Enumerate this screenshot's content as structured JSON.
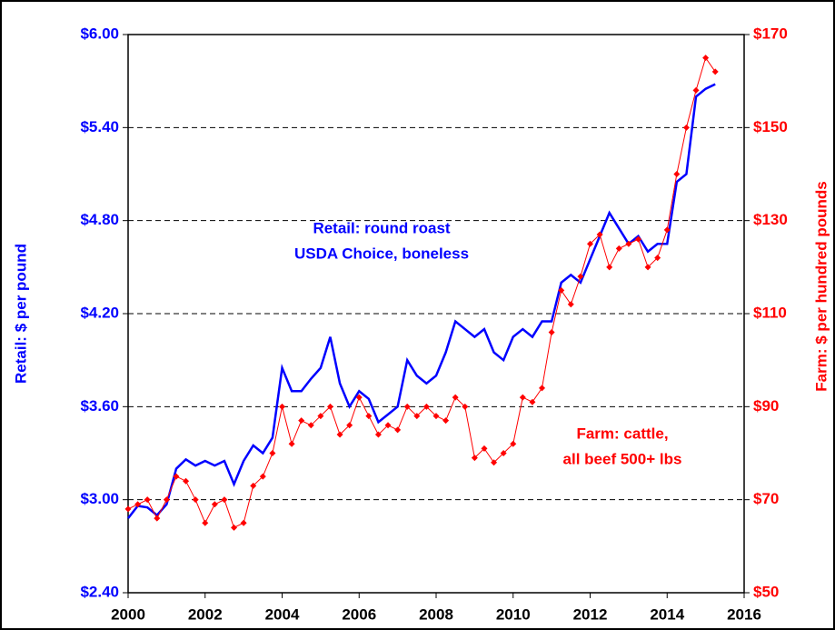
{
  "chart_data": {
    "type": "line",
    "y_label": "Retail: $ per pound",
    "y2_label": "Farm: $ per hundred pounds",
    "annotations": [
      {
        "lines": [
          "Retail: round roast",
          "USDA Choice, boneless"
        ],
        "color": "#0000ff"
      },
      {
        "lines": [
          "Farm: cattle,",
          "all beef 500+ lbs"
        ],
        "color": "#ff0000"
      }
    ],
    "x": [
      2000,
      2000.25,
      2000.5,
      2000.75,
      2001,
      2001.25,
      2001.5,
      2001.75,
      2002,
      2002.25,
      2002.5,
      2002.75,
      2003,
      2003.25,
      2003.5,
      2003.75,
      2004,
      2004.25,
      2004.5,
      2004.75,
      2005,
      2005.25,
      2005.5,
      2005.75,
      2006,
      2006.25,
      2006.5,
      2006.75,
      2007,
      2007.25,
      2007.5,
      2007.75,
      2008,
      2008.25,
      2008.5,
      2008.75,
      2009,
      2009.25,
      2009.5,
      2009.75,
      2010,
      2010.25,
      2010.5,
      2010.75,
      2011,
      2011.25,
      2011.5,
      2011.75,
      2012,
      2012.25,
      2012.5,
      2012.75,
      2013,
      2013.25,
      2013.5,
      2013.75,
      2014,
      2014.25,
      2014.5,
      2014.75,
      2015,
      2015.25
    ],
    "series": [
      {
        "name": "Retail",
        "color": "#0000ff",
        "axis": "y",
        "values": [
          2.88,
          2.96,
          2.95,
          2.9,
          2.97,
          3.2,
          3.26,
          3.22,
          3.25,
          3.22,
          3.25,
          3.1,
          3.25,
          3.35,
          3.3,
          3.4,
          3.85,
          3.7,
          3.7,
          3.78,
          3.85,
          4.05,
          3.75,
          3.6,
          3.7,
          3.65,
          3.5,
          3.55,
          3.6,
          3.9,
          3.8,
          3.75,
          3.8,
          3.95,
          4.15,
          4.1,
          4.05,
          4.1,
          3.95,
          3.9,
          4.05,
          4.1,
          4.05,
          4.15,
          4.15,
          4.4,
          4.45,
          4.4,
          4.55,
          4.7,
          4.85,
          4.75,
          4.65,
          4.7,
          4.6,
          4.65,
          4.65,
          5.05,
          5.1,
          5.6,
          5.65,
          5.68
        ]
      },
      {
        "name": "Farm",
        "color": "#ff0000",
        "axis": "y2",
        "markers": true,
        "values": [
          68,
          69,
          70,
          66,
          70,
          75,
          74,
          70,
          65,
          69,
          70,
          64,
          65,
          73,
          75,
          80,
          90,
          82,
          87,
          86,
          88,
          90,
          84,
          86,
          92,
          88,
          84,
          86,
          85,
          90,
          88,
          90,
          88,
          87,
          92,
          90,
          79,
          81,
          78,
          80,
          82,
          92,
          91,
          94,
          106,
          115,
          112,
          118,
          125,
          127,
          120,
          124,
          125,
          126,
          120,
          122,
          128,
          140,
          150,
          158,
          165,
          162
        ]
      }
    ],
    "xlim": [
      2000,
      2016
    ],
    "xticks": [
      2000,
      2002,
      2004,
      2006,
      2008,
      2010,
      2012,
      2014,
      2016
    ],
    "ylim": [
      2.4,
      6.0
    ],
    "yticks": [
      {
        "value": 2.4,
        "label": "$2.40"
      },
      {
        "value": 3.0,
        "label": "$3.00"
      },
      {
        "value": 3.6,
        "label": "$3.60"
      },
      {
        "value": 4.2,
        "label": "$4.20"
      },
      {
        "value": 4.8,
        "label": "$4.80"
      },
      {
        "value": 5.4,
        "label": "$5.40"
      },
      {
        "value": 6.0,
        "label": "$6.00"
      }
    ],
    "y2lim": [
      50,
      170
    ],
    "y2ticks": [
      {
        "value": 50,
        "label": "$50"
      },
      {
        "value": 70,
        "label": "$70"
      },
      {
        "value": 90,
        "label": "$90"
      },
      {
        "value": 110,
        "label": "$110"
      },
      {
        "value": 130,
        "label": "$130"
      },
      {
        "value": 150,
        "label": "$150"
      },
      {
        "value": 170,
        "label": "$170"
      }
    ],
    "grid": true
  }
}
